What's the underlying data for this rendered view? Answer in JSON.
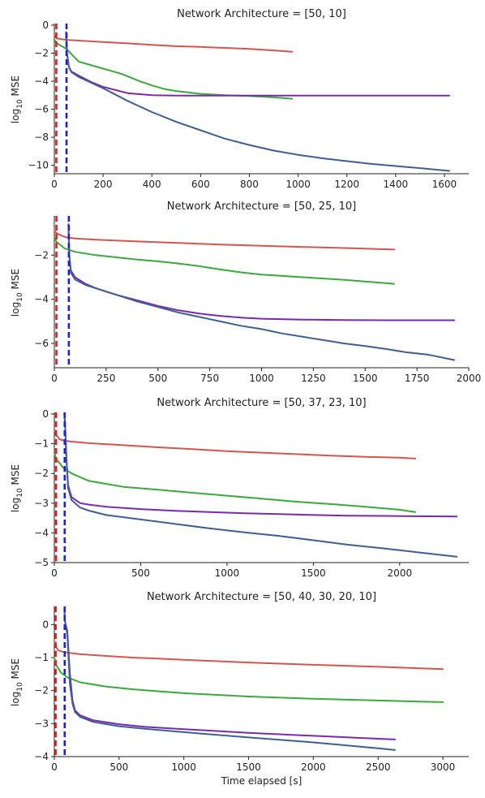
{
  "chart_data": [
    {
      "type": "line",
      "title": "Network Architecture = [50, 10]",
      "ylabel": "log10 MSE",
      "xlabel": "",
      "xlim": [
        0,
        1700
      ],
      "ylim": [
        -10.6,
        0
      ],
      "xticks": [
        0,
        200,
        400,
        600,
        800,
        1000,
        1200,
        1400,
        1600
      ],
      "yticks": [
        0,
        -2,
        -4,
        -6,
        -8,
        -10
      ],
      "vlines": [
        {
          "x": 8,
          "color": "#e41a1c"
        },
        {
          "x": 50,
          "color": "#1f1fd6"
        }
      ],
      "series": [
        {
          "color": "#d9534f",
          "x": [
            0,
            10,
            50,
            100,
            200,
            300,
            400,
            500,
            600,
            700,
            800,
            900,
            975
          ],
          "y": [
            -0.7,
            -0.95,
            -1.05,
            -1.1,
            -1.2,
            -1.3,
            -1.4,
            -1.5,
            -1.55,
            -1.62,
            -1.7,
            -1.8,
            -1.9
          ]
        },
        {
          "color": "#3aaa3a",
          "x": [
            0,
            10,
            50,
            100,
            200,
            280,
            350,
            400,
            450,
            500,
            600,
            700,
            800,
            900,
            975
          ],
          "y": [
            -1.0,
            -1.3,
            -1.7,
            -2.6,
            -3.1,
            -3.5,
            -4.0,
            -4.3,
            -4.55,
            -4.7,
            -4.9,
            -5.0,
            -5.05,
            -5.15,
            -5.25
          ]
        },
        {
          "color": "#7b2ab0",
          "x": [
            48,
            52,
            60,
            70,
            100,
            150,
            200,
            300,
            400,
            500,
            600,
            800,
            1000,
            1200,
            1400,
            1620
          ],
          "y": [
            -0.5,
            -2.0,
            -3.0,
            -3.3,
            -3.6,
            -4.05,
            -4.4,
            -4.85,
            -5.0,
            -5.02,
            -5.02,
            -5.02,
            -5.02,
            -5.02,
            -5.02,
            -5.02
          ]
        },
        {
          "color": "#3e5f96",
          "x": [
            48,
            52,
            60,
            70,
            100,
            200,
            300,
            400,
            500,
            600,
            700,
            800,
            900,
            1000,
            1100,
            1200,
            1300,
            1400,
            1500,
            1620
          ],
          "y": [
            -0.5,
            -2.0,
            -3.0,
            -3.35,
            -3.7,
            -4.5,
            -5.4,
            -6.2,
            -6.9,
            -7.5,
            -8.1,
            -8.55,
            -8.95,
            -9.25,
            -9.5,
            -9.7,
            -9.9,
            -10.05,
            -10.2,
            -10.4
          ]
        }
      ]
    },
    {
      "type": "line",
      "title": "Network Architecture = [50, 25, 10]",
      "ylabel": "log10 MSE",
      "xlabel": "",
      "xlim": [
        0,
        2000
      ],
      "ylim": [
        -7.1,
        -0.3
      ],
      "xticks": [
        0,
        250,
        500,
        750,
        1000,
        1250,
        1500,
        1750,
        2000
      ],
      "yticks": [
        -2,
        -4,
        -6
      ],
      "vlines": [
        {
          "x": 10,
          "color": "#e41a1c"
        },
        {
          "x": 70,
          "color": "#1f1fd6"
        }
      ],
      "series": [
        {
          "color": "#d9534f",
          "x": [
            0,
            10,
            30,
            60,
            100,
            200,
            400,
            600,
            800,
            1000,
            1200,
            1400,
            1640
          ],
          "y": [
            -0.9,
            -1.0,
            -1.1,
            -1.2,
            -1.25,
            -1.3,
            -1.38,
            -1.45,
            -1.52,
            -1.58,
            -1.63,
            -1.68,
            -1.75
          ]
        },
        {
          "color": "#3aaa3a",
          "x": [
            0,
            10,
            50,
            100,
            200,
            300,
            400,
            500,
            600,
            700,
            800,
            900,
            1000,
            1200,
            1400,
            1640
          ],
          "y": [
            -1.2,
            -1.4,
            -1.7,
            -1.85,
            -2.0,
            -2.1,
            -2.2,
            -2.28,
            -2.38,
            -2.5,
            -2.65,
            -2.78,
            -2.88,
            -3.0,
            -3.12,
            -3.3
          ]
        },
        {
          "color": "#7b2ab0",
          "x": [
            68,
            72,
            80,
            100,
            150,
            200,
            300,
            400,
            500,
            600,
            700,
            800,
            900,
            1000,
            1200,
            1400,
            1600,
            1800,
            1930
          ],
          "y": [
            -0.6,
            -2.0,
            -2.7,
            -3.0,
            -3.3,
            -3.5,
            -3.8,
            -4.05,
            -4.3,
            -4.5,
            -4.65,
            -4.75,
            -4.83,
            -4.88,
            -4.92,
            -4.94,
            -4.95,
            -4.95,
            -4.95
          ]
        },
        {
          "color": "#3e5f96",
          "x": [
            68,
            72,
            80,
            100,
            150,
            200,
            300,
            400,
            500,
            600,
            700,
            800,
            900,
            1000,
            1100,
            1200,
            1300,
            1400,
            1500,
            1600,
            1700,
            1800,
            1930
          ],
          "y": [
            -0.6,
            -2.0,
            -2.8,
            -3.1,
            -3.35,
            -3.5,
            -3.8,
            -4.1,
            -4.35,
            -4.6,
            -4.8,
            -5.0,
            -5.2,
            -5.35,
            -5.55,
            -5.7,
            -5.85,
            -6.0,
            -6.12,
            -6.25,
            -6.4,
            -6.5,
            -6.75
          ]
        }
      ]
    },
    {
      "type": "line",
      "title": "Network Architecture = [50, 37, 23, 10]",
      "ylabel": "log10 MSE",
      "xlabel": "",
      "xlim": [
        0,
        2400
      ],
      "ylim": [
        -5,
        0
      ],
      "xticks": [
        0,
        500,
        1000,
        1500,
        2000
      ],
      "yticks": [
        0,
        -1,
        -2,
        -3,
        -4,
        -5
      ],
      "vlines": [
        {
          "x": 10,
          "color": "#e41a1c"
        },
        {
          "x": 60,
          "color": "#1f1fd6"
        }
      ],
      "series": [
        {
          "color": "#d9534f",
          "x": [
            0,
            10,
            30,
            60,
            100,
            200,
            400,
            600,
            800,
            1000,
            1200,
            1400,
            1600,
            1800,
            2000,
            2090
          ],
          "y": [
            -0.5,
            -0.7,
            -0.85,
            -0.9,
            -0.93,
            -0.98,
            -1.05,
            -1.12,
            -1.18,
            -1.25,
            -1.3,
            -1.35,
            -1.4,
            -1.44,
            -1.47,
            -1.5
          ]
        },
        {
          "color": "#3aaa3a",
          "x": [
            0,
            10,
            50,
            100,
            200,
            400,
            600,
            800,
            1000,
            1200,
            1400,
            1600,
            1800,
            2000,
            2090
          ],
          "y": [
            -1.3,
            -1.5,
            -1.8,
            -2.0,
            -2.25,
            -2.45,
            -2.55,
            -2.65,
            -2.75,
            -2.85,
            -2.95,
            -3.03,
            -3.12,
            -3.22,
            -3.3
          ]
        },
        {
          "color": "#7b2ab0",
          "x": [
            58,
            62,
            70,
            80,
            100,
            150,
            200,
            300,
            500,
            700,
            900,
            1100,
            1300,
            1500,
            1700,
            1900,
            2100,
            2330
          ],
          "y": [
            0.0,
            -0.3,
            -1.5,
            -2.4,
            -2.8,
            -3.0,
            -3.05,
            -3.12,
            -3.2,
            -3.26,
            -3.3,
            -3.34,
            -3.37,
            -3.4,
            -3.42,
            -3.43,
            -3.44,
            -3.45
          ]
        },
        {
          "color": "#3e5f96",
          "x": [
            58,
            62,
            70,
            80,
            100,
            150,
            200,
            300,
            500,
            700,
            900,
            1100,
            1300,
            1500,
            1700,
            1900,
            2100,
            2330
          ],
          "y": [
            0.0,
            -0.3,
            -1.5,
            -2.5,
            -2.9,
            -3.15,
            -3.25,
            -3.4,
            -3.55,
            -3.7,
            -3.85,
            -3.98,
            -4.1,
            -4.25,
            -4.4,
            -4.52,
            -4.65,
            -4.8
          ]
        }
      ]
    },
    {
      "type": "line",
      "title": "Network Architecture = [50, 40, 30, 20, 10]",
      "ylabel": "log10 MSE",
      "xlabel": "Time elapsed [s]",
      "xlim": [
        0,
        3200
      ],
      "ylim": [
        -4,
        0.5
      ],
      "xticks": [
        0,
        500,
        1000,
        1500,
        2000,
        2500,
        3000
      ],
      "yticks": [
        0,
        -1,
        -2,
        -3,
        -4
      ],
      "vlines": [
        {
          "x": 10,
          "color": "#e41a1c"
        },
        {
          "x": 80,
          "color": "#1f1fd6"
        }
      ],
      "series": [
        {
          "color": "#d9534f",
          "x": [
            0,
            10,
            30,
            60,
            100,
            200,
            400,
            600,
            800,
            1000,
            1500,
            2000,
            2500,
            3000
          ],
          "y": [
            -0.5,
            -0.65,
            -0.78,
            -0.82,
            -0.85,
            -0.9,
            -0.95,
            -1.0,
            -1.03,
            -1.07,
            -1.15,
            -1.22,
            -1.28,
            -1.35
          ]
        },
        {
          "color": "#3aaa3a",
          "x": [
            0,
            10,
            50,
            100,
            200,
            400,
            600,
            800,
            1000,
            1500,
            2000,
            2500,
            3000
          ],
          "y": [
            -1.0,
            -1.2,
            -1.45,
            -1.6,
            -1.75,
            -1.88,
            -1.96,
            -2.02,
            -2.08,
            -2.18,
            -2.25,
            -2.3,
            -2.35
          ]
        },
        {
          "color": "#7b2ab0",
          "x": [
            78,
            82,
            100,
            120,
            140,
            160,
            200,
            300,
            500,
            700,
            1000,
            1500,
            2000,
            2500,
            2630
          ],
          "y": [
            0.4,
            0.1,
            -0.2,
            -1.5,
            -2.3,
            -2.6,
            -2.75,
            -2.9,
            -3.02,
            -3.1,
            -3.17,
            -3.28,
            -3.37,
            -3.46,
            -3.48
          ]
        },
        {
          "color": "#3e5f96",
          "x": [
            78,
            82,
            100,
            120,
            140,
            160,
            200,
            300,
            500,
            700,
            1000,
            1500,
            2000,
            2500,
            2630
          ],
          "y": [
            0.4,
            0.1,
            -0.3,
            -1.8,
            -2.4,
            -2.65,
            -2.8,
            -2.95,
            -3.08,
            -3.16,
            -3.26,
            -3.42,
            -3.57,
            -3.75,
            -3.8
          ]
        }
      ]
    }
  ]
}
